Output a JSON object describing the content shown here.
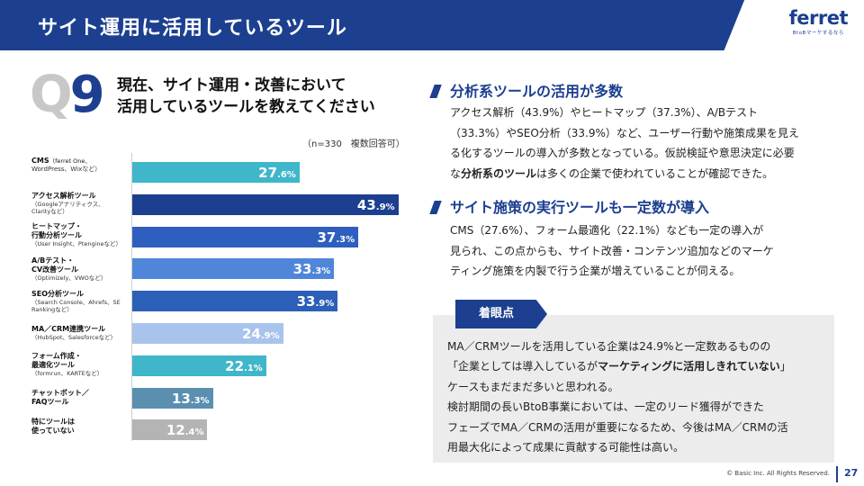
{
  "header": {
    "title": "サイト運用に活用しているツール"
  },
  "logo": {
    "name": "ferret",
    "tagline": "BtoBマーケするなら"
  },
  "question": {
    "number_q": "Q",
    "number_n": "9",
    "line1": "現在、サイト運用・改善において",
    "line2": "活用しているツールを教えてください",
    "note": "（n=330　複数回答可）"
  },
  "chart_data": {
    "type": "bar",
    "orientation": "horizontal",
    "unit": "%",
    "categories": [
      {
        "main": "CMS",
        "inline_sub": "（ferret One、",
        "sub": "WordPress、Wixなど）",
        "sub_bold": true
      },
      {
        "main": "アクセス解析ツール",
        "sub": "（Googleアナリティクス、Clarityなど）"
      },
      {
        "main": "ヒートマップ・行動分析ツール",
        "main2": "行動分析ツール",
        "main1": "ヒートマップ・",
        "sub": "（User Insight、Ptengineなど）"
      },
      {
        "main1": "A/Bテスト・",
        "main2": "CV改善ツール",
        "sub": "（Optimizely、VWOなど）"
      },
      {
        "main": "SEO分析ツール",
        "sub": "（Search Console、Ahrefs、SE Rankingなど）"
      },
      {
        "main": "MA／CRM連携ツール",
        "sub": "（HubSpot、Salesforceなど）"
      },
      {
        "main1": "フォーム作成・",
        "main2": "最適化ツール",
        "sub": "（formrun、KARTEなど）"
      },
      {
        "main1": "チャットボット／",
        "main2": "FAQツール",
        "sub": ""
      },
      {
        "main1": "特にツールは",
        "main2": "使っていない",
        "sub": ""
      }
    ],
    "values": [
      27.6,
      43.9,
      37.3,
      33.3,
      33.9,
      24.9,
      22.1,
      13.3,
      12.4
    ],
    "value_labels_int": [
      "27",
      "43",
      "37",
      "33",
      "33",
      "24",
      "22",
      "13",
      "12"
    ],
    "value_labels_dec": [
      ".6%",
      ".9%",
      ".3%",
      ".3%",
      ".9%",
      ".9%",
      ".1%",
      ".3%",
      ".4%"
    ],
    "colors": [
      "#3fb6c9",
      "#1c3f8f",
      "#2e5fbf",
      "#4f86d9",
      "#2c5fb7",
      "#a9c4ec",
      "#3fb6c9",
      "#5a8fb0",
      "#b4b4b4"
    ],
    "xlim": [
      0,
      45
    ]
  },
  "section1": {
    "heading": "分析系ツールの活用が多数",
    "line1": "アクセス解析（43.9%）やヒートマップ（37.3%）、A/Bテスト",
    "line2": "（33.3%）やSEO分析（33.9%）など、ユーザー行動や施策成果を見え",
    "line3": "る化するツールの導入が多数となっている。仮説検証や意思決定に必要",
    "line4_pre": "な",
    "line4_bold": "分析系のツール",
    "line4_post": "は多くの企業で使われていることが確認できた。"
  },
  "section2": {
    "heading": "サイト施策の実行ツールも一定数が導入",
    "line1": "CMS（27.6%）、フォーム最適化（22.1%）なども一定の導入が",
    "line2": "見られ、この点からも、サイト改善・コンテンツ追加などのマーケ",
    "line3": "ティング施策を内製で行う企業が増えていることが伺える。"
  },
  "focus": {
    "tag": "着眼点",
    "line1": "MA／CRMツールを活用している企業は24.9%と一定数あるものの",
    "line2_pre": "「企業としては導入しているが",
    "line2_bold": "マーケティングに活用しきれていない",
    "line2_post": "」",
    "line3": "ケースもまだまだ多いと思われる。",
    "line4": "検討期間の長いBtoB事業においては、一定のリード獲得ができた",
    "line5": "フェーズでMA／CRMの活用が重要になるため、今後はMA／CRMの活",
    "line6": "用最大化によって成果に貢献する可能性は高い。"
  },
  "footer": {
    "copyright": "© Basic Inc. All Rights Reserved.",
    "page": "27"
  }
}
